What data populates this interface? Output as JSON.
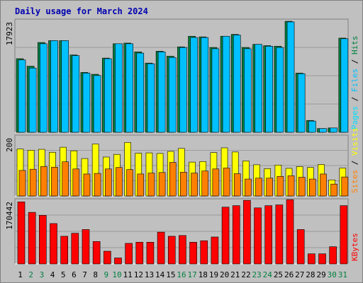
{
  "title": "Daily usage for March 2024",
  "chart_data": {
    "type": "bar",
    "title": "Daily usage for March 2024",
    "categories": [
      "1",
      "2",
      "3",
      "4",
      "5",
      "6",
      "7",
      "8",
      "9",
      "10",
      "11",
      "12",
      "13",
      "14",
      "15",
      "16",
      "17",
      "18",
      "19",
      "20",
      "21",
      "22",
      "23",
      "24",
      "25",
      "26",
      "27",
      "28",
      "29",
      "30",
      "31"
    ],
    "weekend_days": [
      "2",
      "3",
      "9",
      "10",
      "16",
      "17",
      "23",
      "24",
      "30",
      "31"
    ],
    "panels": [
      {
        "name": "traffic",
        "ymax_label": "17923",
        "ylim": [
          0,
          17923
        ],
        "right_label": [
          "Pages",
          "Files",
          "Hits"
        ],
        "series": [
          {
            "name": "Hits",
            "color": "#008040",
            "values": [
              11800,
              10600,
              14400,
              14700,
              14700,
              12400,
              9600,
              9300,
              11900,
              14200,
              14300,
              12900,
              11100,
              13000,
              12200,
              13700,
              15400,
              15300,
              13600,
              15400,
              15700,
              13600,
              14100,
              13900,
              13800,
              17800,
              9500,
              1900,
              600,
              700,
              15100
            ]
          },
          {
            "name": "Files",
            "color": "#00c0ff",
            "values": [
              11600,
              10300,
              14200,
              14700,
              14700,
              12300,
              9500,
              9100,
              11800,
              14200,
              14200,
              12700,
              11000,
              12900,
              12000,
              13600,
              15200,
              15200,
              13400,
              15400,
              15600,
              13400,
              14100,
              13800,
              13600,
              17700,
              9400,
              1800,
              600,
              700,
              15000
            ]
          },
          {
            "name": "Pages",
            "color": "#00e0ff",
            "values": [
              0,
              0,
              0,
              0,
              0,
              0,
              0,
              0,
              0,
              0,
              0,
              0,
              0,
              0,
              0,
              0,
              0,
              0,
              0,
              0,
              0,
              0,
              0,
              0,
              0,
              0,
              0,
              0,
              0,
              0,
              0
            ]
          }
        ]
      },
      {
        "name": "visits",
        "ymax_label": "200",
        "ylim": [
          0,
          200
        ],
        "right_label": [
          "Sites",
          "Visits"
        ],
        "series": [
          {
            "name": "Visits",
            "color": "#ffff00",
            "values": [
              158,
              154,
              157,
              147,
              164,
              152,
              126,
              175,
              131,
              140,
              180,
              144,
              145,
              143,
              150,
              160,
              114,
              116,
              146,
              162,
              148,
              118,
              105,
              92,
              104,
              93,
              99,
              96,
              106,
              54,
              94
            ]
          },
          {
            "name": "Sites",
            "color": "#ff8000",
            "values": [
              86,
              90,
              99,
              97,
              115,
              91,
              74,
              76,
              91,
              96,
              89,
              74,
              77,
              79,
              113,
              80,
              77,
              84,
              91,
              94,
              75,
              57,
              60,
              60,
              66,
              68,
              63,
              57,
              74,
              40,
              64
            ]
          }
        ]
      },
      {
        "name": "kbytes",
        "ymax_label": "170442",
        "ylim": [
          0,
          170442
        ],
        "right_label": [
          "KBytes"
        ],
        "series": [
          {
            "name": "KBytes",
            "color": "#ff0000",
            "values": [
              166000,
              138000,
              130000,
              108000,
              74000,
              82000,
              92000,
              60000,
              34000,
              16000,
              55000,
              58000,
              58000,
              85000,
              74000,
              76000,
              58000,
              62000,
              72000,
              152000,
              156000,
              170000,
              150000,
              156000,
              158000,
              172000,
              92000,
              27000,
              27000,
              46000,
              156000
            ]
          }
        ]
      }
    ]
  }
}
